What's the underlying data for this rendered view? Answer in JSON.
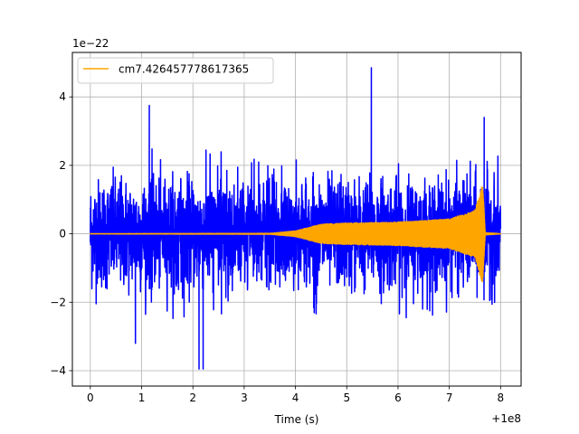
{
  "chart_data": {
    "type": "line",
    "title": "",
    "xlabel": "Time (s)",
    "ylabel": "",
    "x_offset_label": "+1e8",
    "y_scale_label": "1e−22",
    "xlim": [
      -0.35,
      8.4
    ],
    "ylim": [
      -4.45,
      5.3
    ],
    "x_ticks": [
      0,
      1,
      2,
      3,
      4,
      5,
      6,
      7,
      8
    ],
    "x_tick_labels": [
      "0",
      "1",
      "2",
      "3",
      "4",
      "5",
      "6",
      "7",
      "8"
    ],
    "y_ticks": [
      -4,
      -2,
      0,
      2,
      4
    ],
    "y_tick_labels": [
      "−4",
      "−2",
      "0",
      "2",
      "4"
    ],
    "grid": true,
    "legend_position": "upper-left",
    "series": [
      {
        "name": "",
        "color": "#0000ff",
        "kind": "noise",
        "x_range": [
          0,
          8.0
        ],
        "envelope_max": 2.5,
        "notable_peaks": [
          {
            "x": 1.15,
            "y": 3.75
          },
          {
            "x": 5.48,
            "y": 4.85
          },
          {
            "x": 7.68,
            "y": 3.4
          },
          {
            "x": 2.12,
            "y": -3.95
          },
          {
            "x": 2.2,
            "y": -3.95
          },
          {
            "x": 0.88,
            "y": -3.2
          }
        ]
      },
      {
        "name": "cm7.426457778617365",
        "color": "#ffa500",
        "kind": "chirp",
        "x_range": [
          0,
          8.0
        ],
        "amplitude_profile": [
          {
            "x": 0,
            "y": 0.02
          },
          {
            "x": 3.5,
            "y": 0.03
          },
          {
            "x": 4.0,
            "y": 0.1
          },
          {
            "x": 4.5,
            "y": 0.3
          },
          {
            "x": 5.0,
            "y": 0.33
          },
          {
            "x": 6.0,
            "y": 0.36
          },
          {
            "x": 7.0,
            "y": 0.45
          },
          {
            "x": 7.5,
            "y": 0.7
          },
          {
            "x": 7.65,
            "y": 1.5
          },
          {
            "x": 7.7,
            "y": 0.05
          },
          {
            "x": 8.0,
            "y": 0.02
          }
        ]
      }
    ]
  },
  "colors": {
    "noise": "#0000ff",
    "signal": "#ffa500",
    "grid": "#b0b0b0"
  }
}
